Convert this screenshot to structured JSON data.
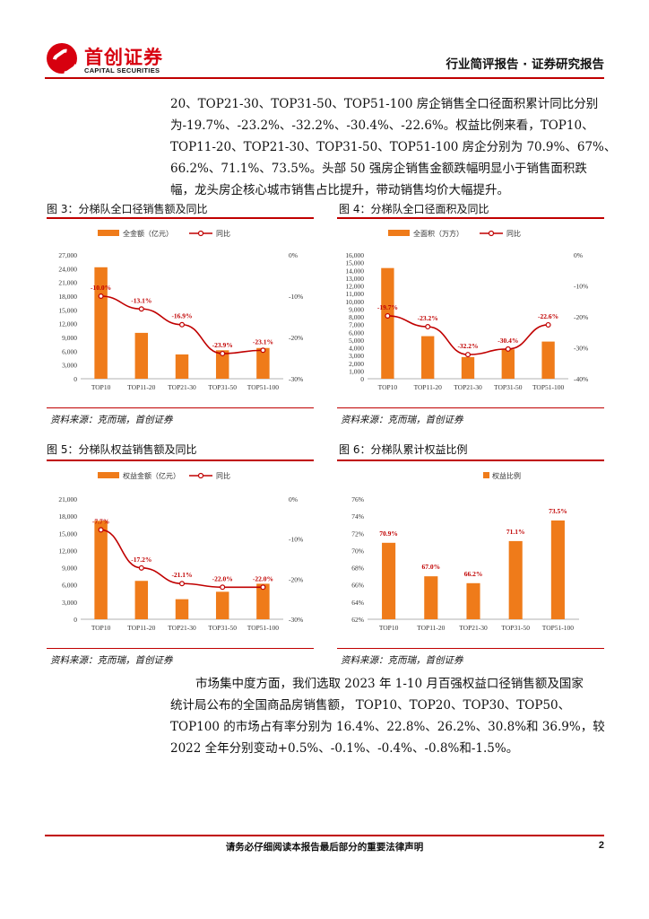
{
  "header": {
    "logo_cn": "首创证券",
    "logo_en": "CAPITAL SECURITIES",
    "doc_type": "行业简评报告 · 证券研究报告"
  },
  "intro_lines": [
    "20、TOP21-30、TOP31-50、TOP51-100 房企销售全口径面积累计同比分别",
    "为-19.7%、-23.2%、-32.2%、-30.4%、-22.6%。权益比例来看，TOP10、",
    "TOP11-20、TOP21-30、TOP31-50、TOP51-100 房企分别为 70.9%、67%、",
    "66.2%、71.1%、73.5%。头部 50 强房企销售金额跌幅明显小于销售面积跌",
    "幅，龙头房企核心城市销售占比提升，带动销售均价大幅提升。"
  ],
  "figures": [
    {
      "title": "图 3：分梯队全口径销售额及同比",
      "source": "资料来源：克而瑞，首创证券"
    },
    {
      "title": "图 4：分梯队全口径面积及同比",
      "source": "资料来源：克而瑞，首创证券"
    },
    {
      "title": "图 5：分梯队权益销售额及同比",
      "source": "资料来源：克而瑞，首创证券"
    },
    {
      "title": "图 6：分梯队累计权益比例",
      "source": "资料来源：克而瑞，首创证券"
    }
  ],
  "chart_data": [
    {
      "type": "bar+line",
      "title": "",
      "categories": [
        "TOP10",
        "TOP11-20",
        "TOP21-30",
        "TOP31-50",
        "TOP51-100"
      ],
      "series": [
        {
          "name": "全金额（亿元）",
          "values": [
            24300,
            10000,
            5300,
            6200,
            6700
          ],
          "axis": "left"
        },
        {
          "name": "同比",
          "values": [
            -10.0,
            -13.1,
            -16.9,
            -23.9,
            -23.1
          ],
          "axis": "right",
          "labels": [
            "-10.0%",
            "-13.1%",
            "-16.9%",
            "-23.9%",
            "-23.1%"
          ]
        }
      ],
      "y_left": {
        "ticks": [
          "0",
          "3,000",
          "6,000",
          "9,000",
          "12,000",
          "15,000",
          "18,000",
          "21,000",
          "24,000",
          "27,000"
        ],
        "min": 0,
        "max": 27000
      },
      "y_right": {
        "ticks": [
          "0%",
          "-10%",
          "-20%",
          "-30%"
        ],
        "min": -30,
        "max": 0
      },
      "legend": "top"
    },
    {
      "type": "bar+line",
      "title": "",
      "categories": [
        "TOP10",
        "TOP11-20",
        "TOP21-30",
        "TOP31-50",
        "TOP51-100"
      ],
      "series": [
        {
          "name": "全面积（万方）",
          "values": [
            14300,
            5500,
            2800,
            3800,
            4800
          ],
          "axis": "left"
        },
        {
          "name": "同比",
          "values": [
            -19.7,
            -23.2,
            -32.2,
            -30.4,
            -22.6
          ],
          "axis": "right",
          "labels": [
            "-19.7%",
            "-23.2%",
            "-32.2%",
            "-30.4%",
            "-22.6%"
          ]
        }
      ],
      "y_left": {
        "ticks": [
          "0",
          "1,000",
          "2,000",
          "3,000",
          "4,000",
          "5,000",
          "6,000",
          "7,000",
          "8,000",
          "9,000",
          "10,000",
          "11,000",
          "12,000",
          "13,000",
          "14,000",
          "15,000",
          "16,000"
        ],
        "min": 0,
        "max": 16000
      },
      "y_right": {
        "ticks": [
          "0%",
          "-10%",
          "-20%",
          "-30%",
          "-40%"
        ],
        "min": -40,
        "max": 0
      },
      "legend": "top"
    },
    {
      "type": "bar+line",
      "title": "",
      "categories": [
        "TOP10",
        "TOP11-20",
        "TOP21-30",
        "TOP31-50",
        "TOP51-100"
      ],
      "series": [
        {
          "name": "权益金额（亿元）",
          "values": [
            17200,
            6700,
            3500,
            4800,
            6200
          ],
          "axis": "left"
        },
        {
          "name": "同比",
          "values": [
            -7.7,
            -17.2,
            -21.1,
            -22.0,
            -22.0
          ],
          "axis": "right",
          "labels": [
            "-7.7%",
            "-17.2%",
            "-21.1%",
            "-22.0%",
            "-22.0%"
          ]
        }
      ],
      "y_left": {
        "ticks": [
          "0",
          "3,000",
          "6,000",
          "9,000",
          "12,000",
          "15,000",
          "18,000",
          "21,000"
        ],
        "min": 0,
        "max": 21000
      },
      "y_right": {
        "ticks": [
          "0%",
          "-10%",
          "-20%",
          "-30%"
        ],
        "min": -30,
        "max": 0
      },
      "legend": "top"
    },
    {
      "type": "bar",
      "title": "",
      "categories": [
        "TOP10",
        "TOP11-20",
        "TOP21-30",
        "TOP31-50",
        "TOP51-100"
      ],
      "series": [
        {
          "name": "权益比例",
          "values": [
            70.9,
            67.0,
            66.2,
            71.1,
            73.5
          ],
          "axis": "left",
          "labels": [
            "70.9%",
            "67.0%",
            "66.2%",
            "71.1%",
            "73.5%"
          ]
        }
      ],
      "y_left": {
        "ticks": [
          "62%",
          "64%",
          "66%",
          "68%",
          "70%",
          "72%",
          "74%",
          "76%"
        ],
        "min": 62,
        "max": 76
      },
      "legend": "top"
    }
  ],
  "closing_lines": [
    "市场集中度方面，我们选取 2023 年 1-10 月百强权益口径销售额及国家",
    "统计局公布的全国商品房销售额， TOP10、TOP20、TOP30、TOP50、",
    "TOP100 的市场占有率分别为 16.4%、22.8%、26.2%、30.8%和 36.9%，较",
    "2022 全年分别变动+0.5%、-0.1%、-0.4%、-0.8%和-1.5%。"
  ],
  "footer": {
    "disclaimer": "请务必仔细阅读本报告最后部分的重要法律声明",
    "page": "2"
  },
  "colors": {
    "bar": "#ef7b1a",
    "line": "#c00000",
    "rule": "#c00000"
  }
}
